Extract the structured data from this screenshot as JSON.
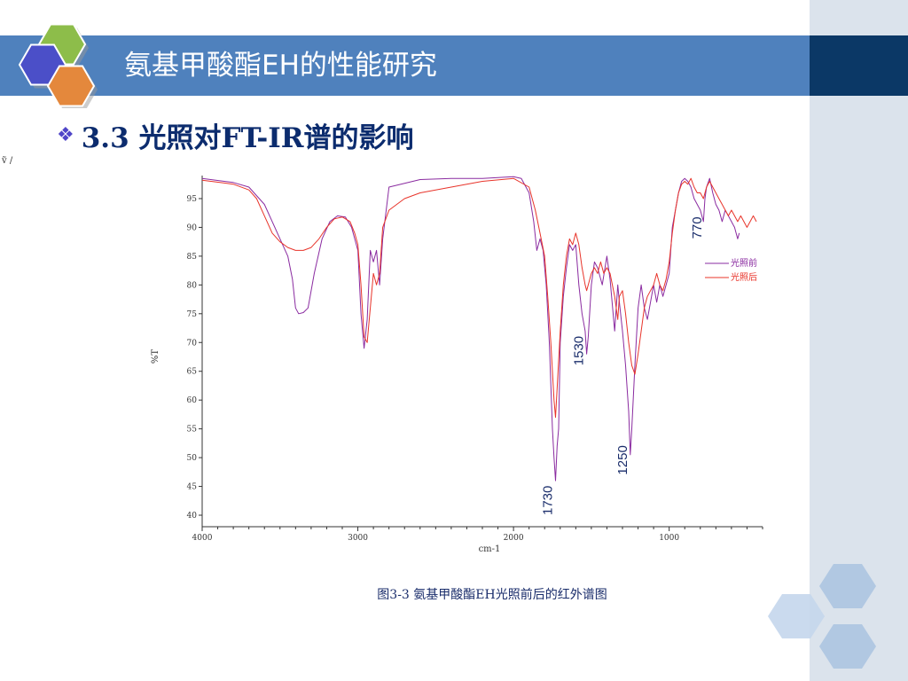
{
  "slide": {
    "title": "氨基甲酸酯EH的性能研究",
    "heading": "3.3 光照对FT-IR谱的影响",
    "bullet_icon": "diamond-bullet-icon",
    "caption": "图3-3 氨基甲酸酯EH光照前后的红外谱图",
    "corner_mark": "ṽ /",
    "colors": {
      "title_bar": "#4f81bd",
      "title_dark": "#0b3866",
      "right_panel": "#dbe3ec",
      "heading": "#0c2c6e"
    }
  },
  "chart_data": {
    "type": "line",
    "title": "",
    "xlabel": "cm-1",
    "ylabel": "%T",
    "xlim": [
      4000,
      400
    ],
    "ylim": [
      38,
      99
    ],
    "x_ticks": [
      4000,
      3000,
      2000,
      1000
    ],
    "y_ticks": [
      40,
      45,
      50,
      55,
      60,
      65,
      70,
      75,
      80,
      85,
      90,
      95
    ],
    "grid": false,
    "legend_position": "right",
    "series": [
      {
        "name": "光照前",
        "color": "#8a2ba0",
        "points": [
          [
            4000,
            98.5
          ],
          [
            3800,
            97.8
          ],
          [
            3700,
            97
          ],
          [
            3600,
            94
          ],
          [
            3550,
            91
          ],
          [
            3500,
            88
          ],
          [
            3450,
            85
          ],
          [
            3420,
            81
          ],
          [
            3400,
            76
          ],
          [
            3380,
            75
          ],
          [
            3350,
            75.2
          ],
          [
            3320,
            76
          ],
          [
            3280,
            82
          ],
          [
            3230,
            88
          ],
          [
            3180,
            91
          ],
          [
            3130,
            92
          ],
          [
            3080,
            91.8
          ],
          [
            3040,
            90
          ],
          [
            3000,
            86
          ],
          [
            2980,
            75
          ],
          [
            2960,
            69
          ],
          [
            2940,
            74
          ],
          [
            2920,
            86
          ],
          [
            2900,
            84
          ],
          [
            2880,
            86
          ],
          [
            2860,
            80
          ],
          [
            2840,
            88
          ],
          [
            2800,
            97
          ],
          [
            2600,
            98.3
          ],
          [
            2400,
            98.5
          ],
          [
            2200,
            98.5
          ],
          [
            2000,
            98.8
          ],
          [
            1950,
            98.5
          ],
          [
            1900,
            96
          ],
          [
            1870,
            91
          ],
          [
            1850,
            86
          ],
          [
            1830,
            88
          ],
          [
            1810,
            86
          ],
          [
            1790,
            80
          ],
          [
            1770,
            70
          ],
          [
            1750,
            55
          ],
          [
            1740,
            50
          ],
          [
            1730,
            46
          ],
          [
            1720,
            52
          ],
          [
            1710,
            55
          ],
          [
            1700,
            70
          ],
          [
            1680,
            78
          ],
          [
            1660,
            83
          ],
          [
            1640,
            87
          ],
          [
            1620,
            86
          ],
          [
            1600,
            87
          ],
          [
            1580,
            80
          ],
          [
            1560,
            75
          ],
          [
            1540,
            72
          ],
          [
            1530,
            68
          ],
          [
            1520,
            71
          ],
          [
            1500,
            80
          ],
          [
            1480,
            84
          ],
          [
            1460,
            83
          ],
          [
            1430,
            80
          ],
          [
            1400,
            85
          ],
          [
            1380,
            81
          ],
          [
            1350,
            72
          ],
          [
            1330,
            80
          ],
          [
            1320,
            77
          ],
          [
            1300,
            72
          ],
          [
            1280,
            66
          ],
          [
            1260,
            58
          ],
          [
            1250,
            50.5
          ],
          [
            1240,
            55
          ],
          [
            1220,
            66
          ],
          [
            1200,
            76
          ],
          [
            1180,
            80
          ],
          [
            1160,
            76
          ],
          [
            1140,
            74
          ],
          [
            1120,
            77
          ],
          [
            1100,
            80
          ],
          [
            1080,
            77
          ],
          [
            1060,
            80
          ],
          [
            1040,
            78
          ],
          [
            1020,
            80
          ],
          [
            1000,
            82
          ],
          [
            980,
            90
          ],
          [
            960,
            93
          ],
          [
            940,
            96
          ],
          [
            920,
            98
          ],
          [
            900,
            98.5
          ],
          [
            880,
            98
          ],
          [
            860,
            97
          ],
          [
            840,
            95
          ],
          [
            820,
            94
          ],
          [
            800,
            93
          ],
          [
            780,
            91
          ],
          [
            770,
            95
          ],
          [
            760,
            97
          ],
          [
            740,
            98.5
          ],
          [
            720,
            96
          ],
          [
            700,
            94
          ],
          [
            680,
            93
          ],
          [
            660,
            91
          ],
          [
            640,
            93
          ],
          [
            620,
            92
          ],
          [
            600,
            91
          ],
          [
            580,
            90
          ],
          [
            560,
            88
          ],
          [
            550,
            89
          ]
        ]
      },
      {
        "name": "光照后",
        "color": "#e8342a",
        "points": [
          [
            4000,
            98.2
          ],
          [
            3800,
            97.5
          ],
          [
            3700,
            96.5
          ],
          [
            3650,
            95
          ],
          [
            3600,
            92
          ],
          [
            3550,
            89
          ],
          [
            3500,
            87.5
          ],
          [
            3450,
            86.5
          ],
          [
            3400,
            86
          ],
          [
            3350,
            86
          ],
          [
            3300,
            86.5
          ],
          [
            3250,
            88
          ],
          [
            3200,
            90
          ],
          [
            3150,
            91.5
          ],
          [
            3100,
            91.8
          ],
          [
            3050,
            91
          ],
          [
            3020,
            89
          ],
          [
            3000,
            87
          ],
          [
            2980,
            80
          ],
          [
            2960,
            71
          ],
          [
            2940,
            70
          ],
          [
            2920,
            76
          ],
          [
            2900,
            82
          ],
          [
            2880,
            80
          ],
          [
            2860,
            82
          ],
          [
            2840,
            90
          ],
          [
            2800,
            93
          ],
          [
            2700,
            95
          ],
          [
            2600,
            96
          ],
          [
            2400,
            97
          ],
          [
            2200,
            98
          ],
          [
            2000,
            98.5
          ],
          [
            1900,
            97
          ],
          [
            1860,
            93
          ],
          [
            1830,
            89
          ],
          [
            1800,
            85
          ],
          [
            1780,
            78
          ],
          [
            1760,
            70
          ],
          [
            1740,
            60
          ],
          [
            1730,
            57
          ],
          [
            1720,
            62
          ],
          [
            1700,
            72
          ],
          [
            1680,
            80
          ],
          [
            1660,
            85
          ],
          [
            1640,
            88
          ],
          [
            1620,
            87
          ],
          [
            1600,
            89
          ],
          [
            1580,
            87
          ],
          [
            1560,
            83
          ],
          [
            1540,
            80
          ],
          [
            1530,
            79
          ],
          [
            1520,
            80
          ],
          [
            1500,
            82
          ],
          [
            1480,
            83
          ],
          [
            1460,
            82
          ],
          [
            1440,
            84
          ],
          [
            1420,
            82
          ],
          [
            1400,
            83
          ],
          [
            1380,
            82
          ],
          [
            1350,
            78
          ],
          [
            1330,
            74
          ],
          [
            1320,
            78
          ],
          [
            1300,
            79
          ],
          [
            1280,
            75
          ],
          [
            1260,
            70
          ],
          [
            1240,
            66
          ],
          [
            1220,
            64.5
          ],
          [
            1200,
            68
          ],
          [
            1180,
            72
          ],
          [
            1160,
            76
          ],
          [
            1140,
            78
          ],
          [
            1120,
            79
          ],
          [
            1100,
            80
          ],
          [
            1080,
            82
          ],
          [
            1060,
            80
          ],
          [
            1040,
            79
          ],
          [
            1020,
            81
          ],
          [
            1000,
            84
          ],
          [
            980,
            89
          ],
          [
            960,
            93
          ],
          [
            940,
            96
          ],
          [
            920,
            97.5
          ],
          [
            900,
            98
          ],
          [
            880,
            97.5
          ],
          [
            860,
            98.5
          ],
          [
            840,
            97
          ],
          [
            820,
            96
          ],
          [
            800,
            96
          ],
          [
            780,
            95
          ],
          [
            760,
            97
          ],
          [
            740,
            98
          ],
          [
            720,
            97
          ],
          [
            700,
            96
          ],
          [
            680,
            95
          ],
          [
            660,
            94
          ],
          [
            640,
            93
          ],
          [
            620,
            92
          ],
          [
            600,
            93
          ],
          [
            580,
            92
          ],
          [
            560,
            91
          ],
          [
            540,
            92
          ],
          [
            520,
            91
          ],
          [
            500,
            90
          ],
          [
            480,
            91
          ],
          [
            460,
            92
          ],
          [
            440,
            91
          ]
        ]
      }
    ],
    "annotations": [
      {
        "text": "1730",
        "x": 1730,
        "y": 40
      },
      {
        "text": "1530",
        "x": 1530,
        "y": 66
      },
      {
        "text": "1250",
        "x": 1250,
        "y": 47
      },
      {
        "text": "770",
        "x": 770,
        "y": 88
      }
    ]
  }
}
